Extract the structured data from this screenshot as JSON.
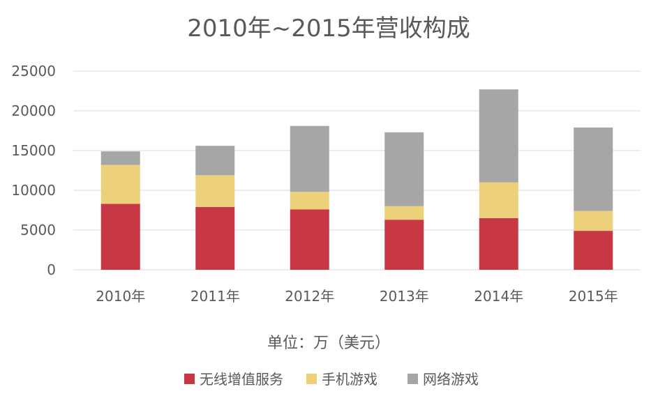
{
  "chart_data": {
    "type": "bar",
    "stacked": true,
    "title": "2010年~2015年营收构成",
    "xlabel": "单位：万（美元）",
    "ylabel": "",
    "categories": [
      "2010年",
      "2011年",
      "2012年",
      "2013年",
      "2014年",
      "2015年"
    ],
    "ylim": [
      0,
      25000
    ],
    "yticks": [
      "0",
      "5000",
      "10000",
      "15000",
      "20000",
      "25000"
    ],
    "grid": true,
    "legend_position": "bottom",
    "series": [
      {
        "name": "无线增值服务",
        "color": "#c83844",
        "values": [
          8300,
          7900,
          7600,
          6300,
          6500,
          4900
        ]
      },
      {
        "name": "手机游戏",
        "color": "#edd07a",
        "values": [
          4900,
          4000,
          2200,
          1700,
          4500,
          2500
        ]
      },
      {
        "name": "网络游戏",
        "color": "#a6a6a6",
        "values": [
          1700,
          3700,
          8300,
          9300,
          11700,
          10500
        ]
      }
    ]
  }
}
